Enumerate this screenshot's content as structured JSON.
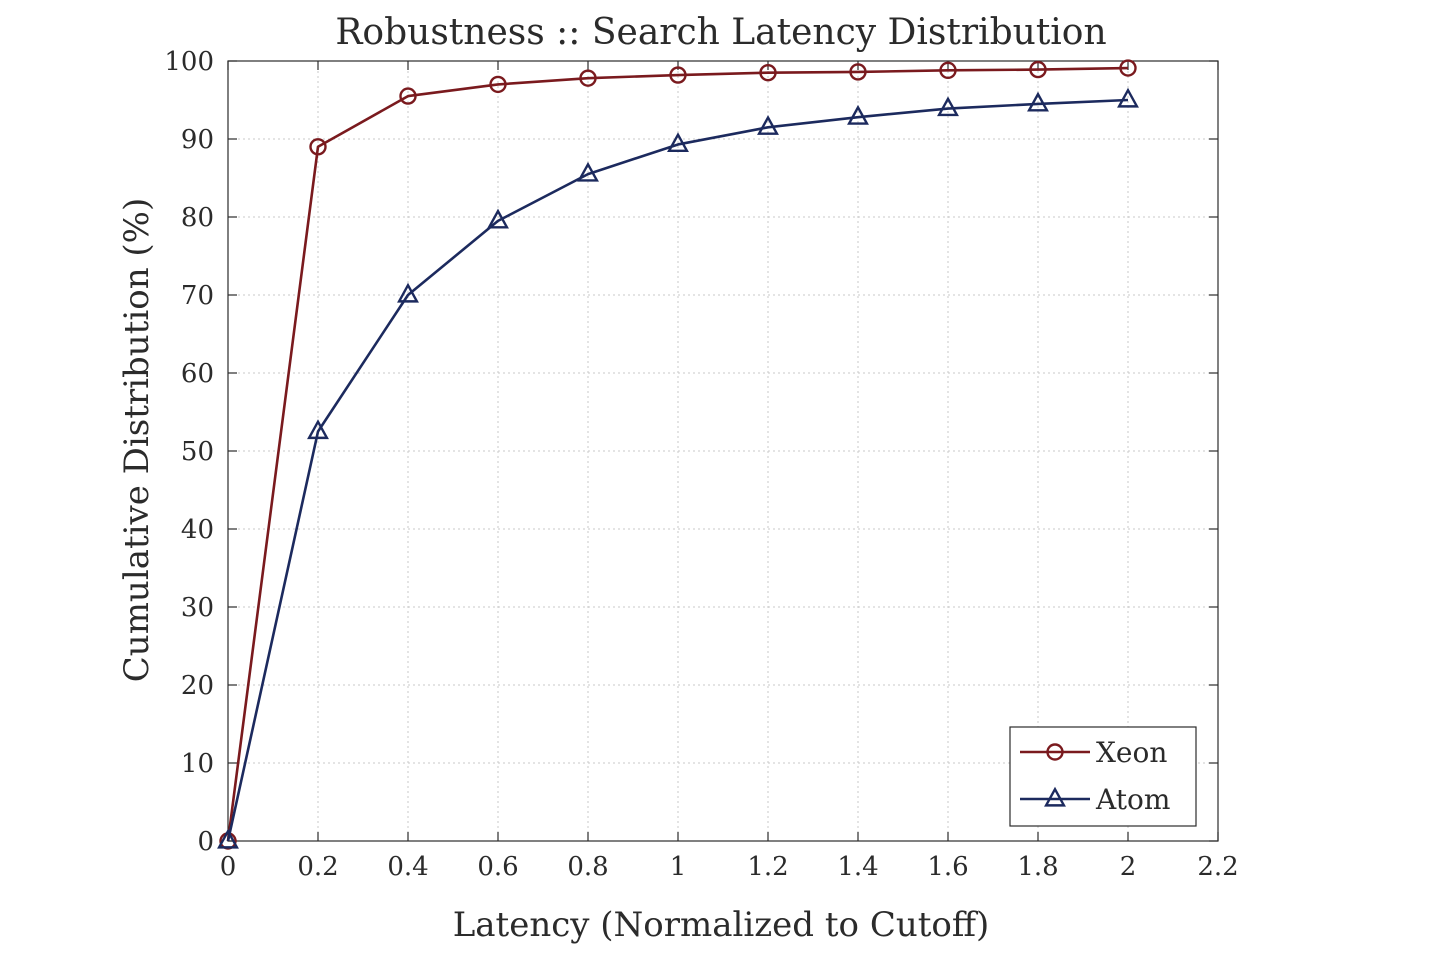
{
  "chart_data": {
    "type": "line",
    "title": "Robustness :: Search Latency Distribution",
    "xlabel": "Latency (Normalized to Cutoff)",
    "ylabel": "Cumulative Distribution (%)",
    "xlim": [
      0,
      2.2
    ],
    "ylim": [
      0,
      100
    ],
    "x_ticks": [
      0,
      0.2,
      0.4,
      0.6,
      0.8,
      1,
      1.2,
      1.4,
      1.6,
      1.8,
      2,
      2.2
    ],
    "x_tick_labels": [
      "0",
      "0.2",
      "0.4",
      "0.6",
      "0.8",
      "1",
      "1.2",
      "1.4",
      "1.6",
      "1.8",
      "2",
      "2.2"
    ],
    "y_ticks": [
      0,
      10,
      20,
      30,
      40,
      50,
      60,
      70,
      80,
      90,
      100
    ],
    "y_tick_labels": [
      "0",
      "10",
      "20",
      "30",
      "40",
      "50",
      "60",
      "70",
      "80",
      "90",
      "100"
    ],
    "grid": true,
    "legend_position": "bottom-right",
    "x": [
      0,
      0.2,
      0.4,
      0.6,
      0.8,
      1.0,
      1.2,
      1.4,
      1.6,
      1.8,
      2.0
    ],
    "series": [
      {
        "name": "Xeon",
        "marker": "circle",
        "color": "#7a1a1e",
        "values": [
          0,
          89,
          95.5,
          97,
          97.8,
          98.2,
          98.5,
          98.6,
          98.8,
          98.9,
          99.1
        ]
      },
      {
        "name": "Atom",
        "marker": "triangle",
        "color": "#1c2a5e",
        "values": [
          0,
          52.5,
          70,
          79.5,
          85.5,
          89.3,
          91.5,
          92.8,
          93.9,
          94.5,
          95
        ]
      }
    ]
  }
}
